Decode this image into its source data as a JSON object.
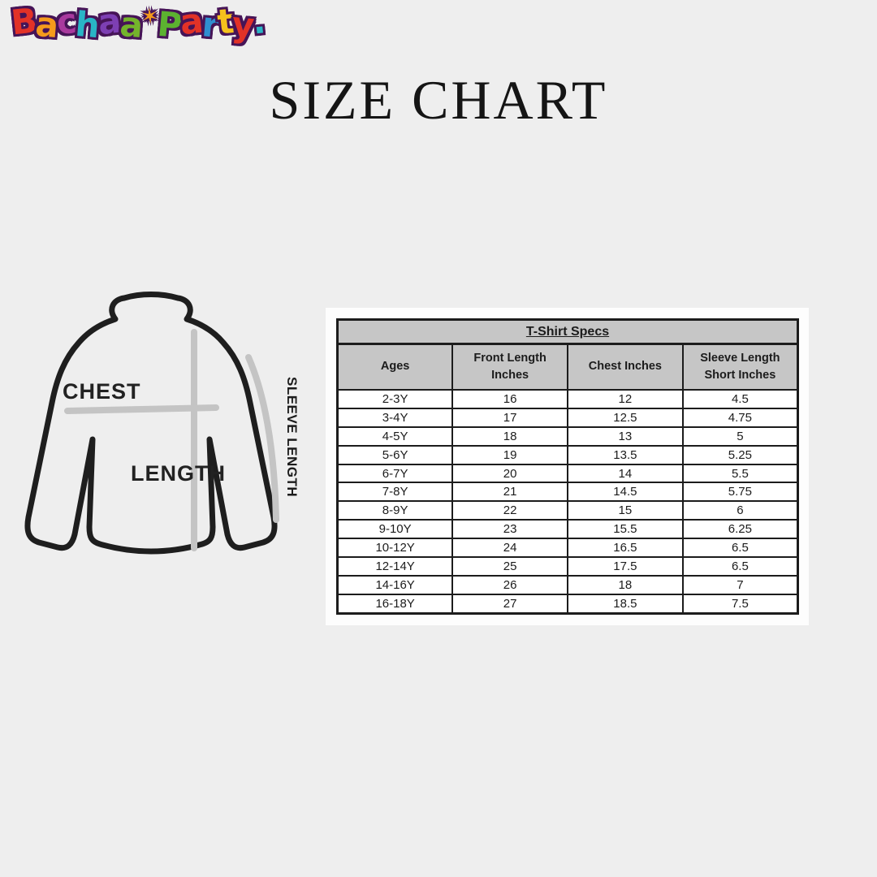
{
  "logo": {
    "alt_text": "Bachaa Party",
    "letters": [
      {
        "ch": "B",
        "color": "#e23227"
      },
      {
        "ch": "a",
        "color": "#f59b1c"
      },
      {
        "ch": "c",
        "color": "#a93a9e"
      },
      {
        "ch": "h",
        "color": "#29b5c6"
      },
      {
        "ch": "a",
        "color": "#7d3fb3"
      },
      {
        "ch": "a",
        "color": "#74b32c"
      },
      {
        "ch": "✶",
        "color": "#f59b1c",
        "kid": true
      },
      {
        "ch": "P",
        "color": "#5cb230"
      },
      {
        "ch": "a",
        "color": "#e23227"
      },
      {
        "ch": "r",
        "color": "#2f8fd0"
      },
      {
        "ch": "t",
        "color": "#f5c21d"
      },
      {
        "ch": "y",
        "color": "#e23227"
      },
      {
        "ch": ".",
        "color": "#29b5c6"
      }
    ]
  },
  "title": "SIZE CHART",
  "diagram": {
    "chest_label": "CHEST",
    "length_label": "LENGTH",
    "sleeve_label": "SLEEVE LENGTH",
    "outline_color": "#1e1e1e",
    "guide_color": "#c4c4c4"
  },
  "size_table": {
    "title": "T-Shirt Specs",
    "header_bg": "#c6c6c6",
    "headers": [
      "Ages",
      "Front Length Inches",
      "Chest Inches",
      "Sleeve Length Short Inches"
    ],
    "rows": [
      {
        "ages": "2-3Y",
        "front_length": "16",
        "chest": "12",
        "sleeve_length": "4.5"
      },
      {
        "ages": "3-4Y",
        "front_length": "17",
        "chest": "12.5",
        "sleeve_length": "4.75"
      },
      {
        "ages": "4-5Y",
        "front_length": "18",
        "chest": "13",
        "sleeve_length": "5"
      },
      {
        "ages": "5-6Y",
        "front_length": "19",
        "chest": "13.5",
        "sleeve_length": "5.25"
      },
      {
        "ages": "6-7Y",
        "front_length": "20",
        "chest": "14",
        "sleeve_length": "5.5"
      },
      {
        "ages": "7-8Y",
        "front_length": "21",
        "chest": "14.5",
        "sleeve_length": "5.75"
      },
      {
        "ages": "8-9Y",
        "front_length": "22",
        "chest": "15",
        "sleeve_length": "6"
      },
      {
        "ages": "9-10Y",
        "front_length": "23",
        "chest": "15.5",
        "sleeve_length": "6.25"
      },
      {
        "ages": "10-12Y",
        "front_length": "24",
        "chest": "16.5",
        "sleeve_length": "6.5"
      },
      {
        "ages": "12-14Y",
        "front_length": "25",
        "chest": "17.5",
        "sleeve_length": "6.5"
      },
      {
        "ages": "14-16Y",
        "front_length": "26",
        "chest": "18",
        "sleeve_length": "7"
      },
      {
        "ages": "16-18Y",
        "front_length": "27",
        "chest": "18.5",
        "sleeve_length": "7.5"
      }
    ]
  }
}
